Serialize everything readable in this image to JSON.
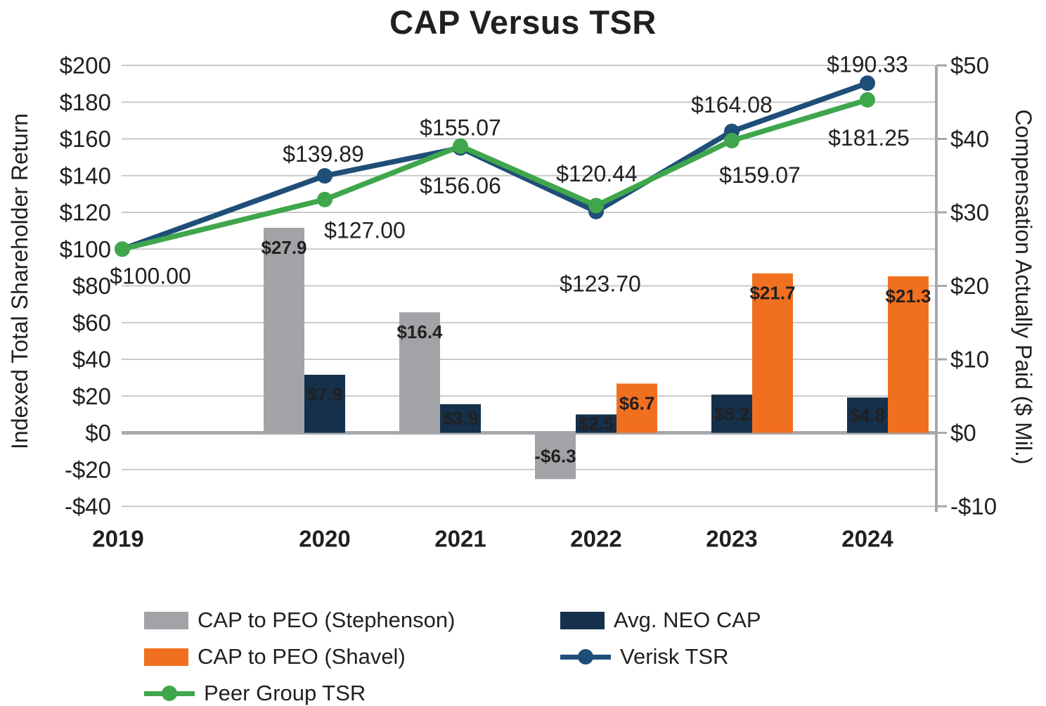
{
  "chart_data": {
    "type": "combo",
    "title": "CAP Versus TSR",
    "categories": [
      "2019",
      "2020",
      "2021",
      "2022",
      "2023",
      "2024"
    ],
    "left_axis": {
      "label": "Indexed Total Shareholder Return",
      "min": -40,
      "max": 200,
      "step": 20,
      "ticks": [
        "$200",
        "$180",
        "$160",
        "$140",
        "$120",
        "$100",
        "$80",
        "$60",
        "$40",
        "$20",
        "$0",
        "-$20",
        "-$40"
      ]
    },
    "right_axis": {
      "label": "Compensation Actually Paid ($ Mil.)",
      "min": -10,
      "max": 50,
      "step": 10,
      "ticks": [
        "$50",
        "$40",
        "$30",
        "$20",
        "$10",
        "$0",
        "-$10"
      ]
    },
    "grid": "horizontal",
    "bar_series": [
      {
        "name": "CAP to PEO (Stephenson)",
        "color": "#a1a3a6",
        "axis": "right",
        "values": [
          null,
          27.9,
          16.4,
          -6.3,
          null,
          null
        ],
        "labels": [
          null,
          "$27.9",
          "$16.4",
          "-$6.3",
          null,
          null
        ]
      },
      {
        "name": "Avg. NEO CAP",
        "color": "#14304a",
        "axis": "right",
        "values": [
          null,
          7.9,
          3.9,
          2.5,
          5.2,
          4.8
        ],
        "labels": [
          null,
          "$7.9",
          "$3.9",
          "$2.5",
          "$5.2",
          "$4.8"
        ]
      },
      {
        "name": "CAP to PEO (Shavel)",
        "color": "#f1701f",
        "axis": "right",
        "values": [
          null,
          null,
          null,
          6.7,
          21.7,
          21.3
        ],
        "labels": [
          null,
          null,
          null,
          "$6.7",
          "$21.7",
          "$21.3"
        ]
      }
    ],
    "line_series": [
      {
        "name": "Verisk TSR",
        "color": "#1f4e79",
        "axis": "left",
        "values": [
          100.0,
          139.89,
          155.07,
          120.44,
          164.08,
          190.33
        ],
        "labels": [
          "$100.00",
          "$139.89",
          "$155.07",
          "$120.44",
          "$164.08",
          "$190.33"
        ]
      },
      {
        "name": "Peer Group TSR",
        "color": "#3fa64c",
        "axis": "left",
        "values": [
          100.0,
          127.0,
          156.06,
          123.7,
          159.07,
          181.25
        ],
        "labels": [
          null,
          "$127.00",
          "$156.06",
          "$123.70",
          "$159.07",
          "$181.25"
        ]
      }
    ]
  },
  "legend": {
    "items": [
      {
        "id": "stephenson",
        "type": "bar",
        "label": "CAP to PEO (Stephenson)"
      },
      {
        "id": "neo",
        "type": "bar",
        "label": "Avg. NEO CAP"
      },
      {
        "id": "shavel",
        "type": "bar",
        "label": "CAP to PEO (Shavel)"
      },
      {
        "id": "verisk",
        "type": "line",
        "label": "Verisk TSR"
      },
      {
        "id": "peer",
        "type": "line",
        "label": "Peer Group TSR"
      }
    ]
  }
}
